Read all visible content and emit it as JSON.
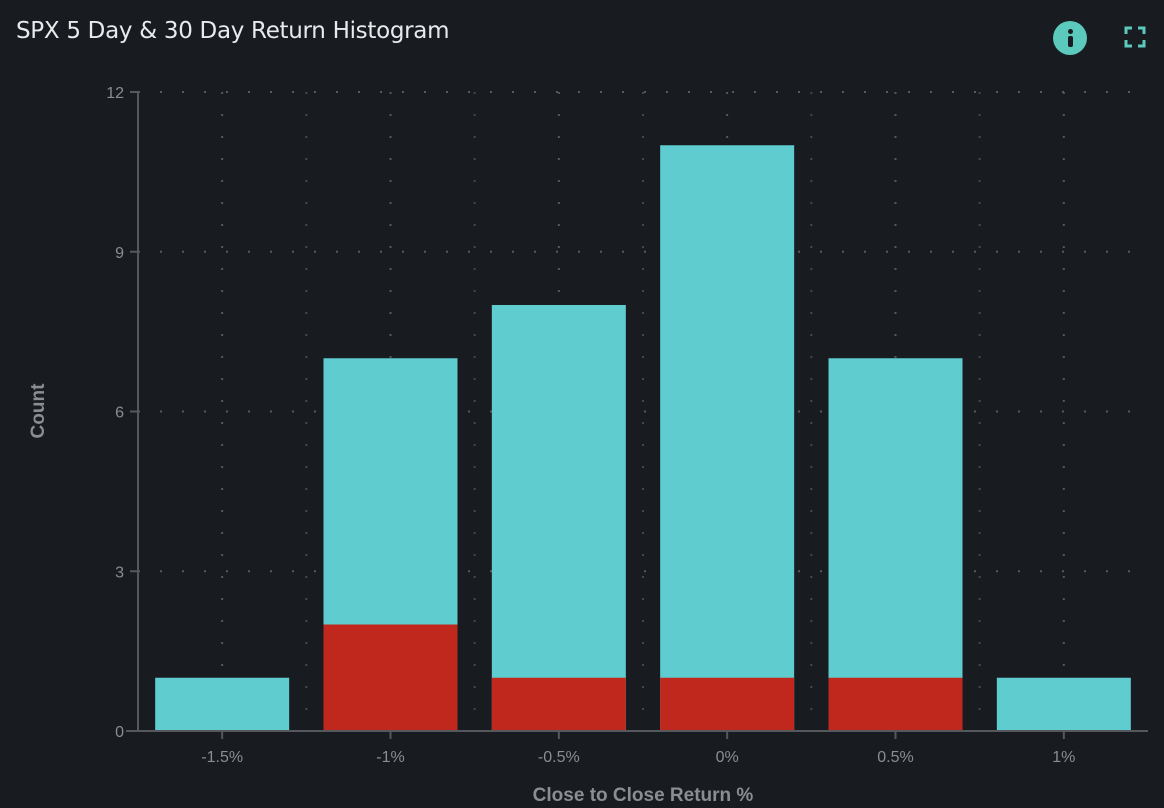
{
  "header": {
    "title": "SPX 5 Day & 30 Day Return Histogram",
    "info_icon": "info-icon",
    "expand_icon": "expand-icon"
  },
  "chart_data": {
    "type": "bar",
    "title": "SPX 5 Day & 30 Day Return Histogram",
    "xlabel": "Close to Close Return %",
    "ylabel": "Count",
    "categories": [
      "-1.5%",
      "-1%",
      "-0.5%",
      "0%",
      "0.5%",
      "1%"
    ],
    "series": [
      {
        "values": [
          1,
          7,
          8,
          11,
          7,
          1
        ],
        "color": "#5fcccf"
      },
      {
        "values": [
          0,
          2,
          1,
          1,
          1,
          0
        ],
        "color": "#c0281d"
      }
    ],
    "ylim": [
      0,
      12
    ],
    "yticks": [
      0,
      3,
      6,
      9,
      12
    ],
    "grid": true,
    "barmode": "overlay"
  }
}
